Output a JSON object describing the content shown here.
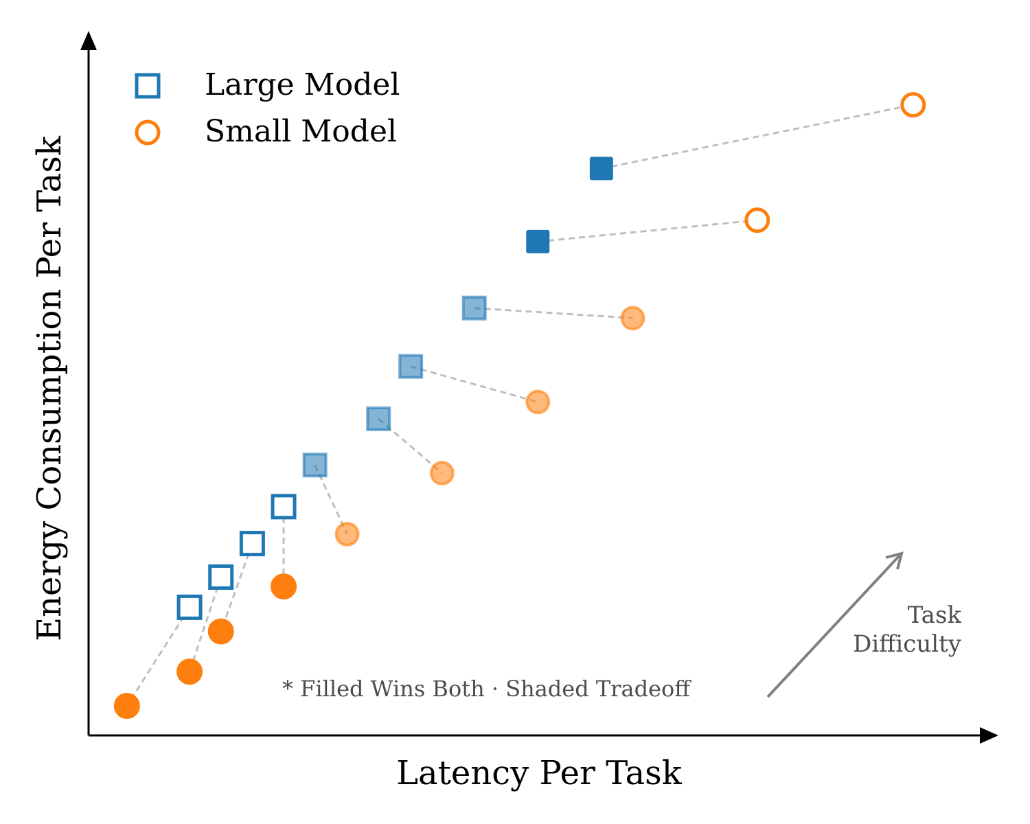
{
  "chart_data": {
    "type": "scatter",
    "title": "",
    "xlabel": "Latency Per Task",
    "ylabel": "Energy Consumption Per Task",
    "xlim": [
      0,
      100
    ],
    "ylim": [
      0,
      100
    ],
    "legend": {
      "placement": "top-left",
      "entries": [
        {
          "label": "Large Model",
          "marker": "square",
          "color": "#1f77b4"
        },
        {
          "label": "Small Model",
          "marker": "circle",
          "color": "#ff7f0e"
        }
      ]
    },
    "annotation": "* Filled Wins Both · Shaded Tradeoff",
    "direction_label": "Task\nDifficulty",
    "series": [
      {
        "name": "Large Model",
        "marker": "square",
        "color": "#1f77b4",
        "points": [
          {
            "x": 11.6,
            "y": 19.1,
            "style": "open"
          },
          {
            "x": 15.2,
            "y": 23.6,
            "style": "open"
          },
          {
            "x": 18.8,
            "y": 28.6,
            "style": "open"
          },
          {
            "x": 22.4,
            "y": 34.1,
            "style": "open"
          },
          {
            "x": 26.0,
            "y": 40.3,
            "style": "shaded"
          },
          {
            "x": 33.3,
            "y": 47.2,
            "style": "shaded"
          },
          {
            "x": 37.0,
            "y": 55.0,
            "style": "shaded"
          },
          {
            "x": 44.3,
            "y": 63.7,
            "style": "shaded"
          },
          {
            "x": 51.6,
            "y": 73.6,
            "style": "filled"
          },
          {
            "x": 58.9,
            "y": 84.5,
            "style": "filled"
          }
        ]
      },
      {
        "name": "Small Model",
        "marker": "circle",
        "color": "#ff7f0e",
        "points": [
          {
            "x": 4.4,
            "y": 4.4,
            "style": "filled"
          },
          {
            "x": 11.6,
            "y": 9.5,
            "style": "filled"
          },
          {
            "x": 15.2,
            "y": 15.5,
            "style": "filled"
          },
          {
            "x": 22.4,
            "y": 22.2,
            "style": "filled"
          },
          {
            "x": 29.7,
            "y": 30.0,
            "style": "shaded"
          },
          {
            "x": 40.6,
            "y": 39.1,
            "style": "shaded"
          },
          {
            "x": 51.6,
            "y": 49.7,
            "style": "shaded"
          },
          {
            "x": 62.5,
            "y": 62.2,
            "style": "shaded"
          },
          {
            "x": 76.8,
            "y": 76.8,
            "style": "open"
          },
          {
            "x": 94.7,
            "y": 94.0,
            "style": "open"
          }
        ]
      }
    ]
  }
}
